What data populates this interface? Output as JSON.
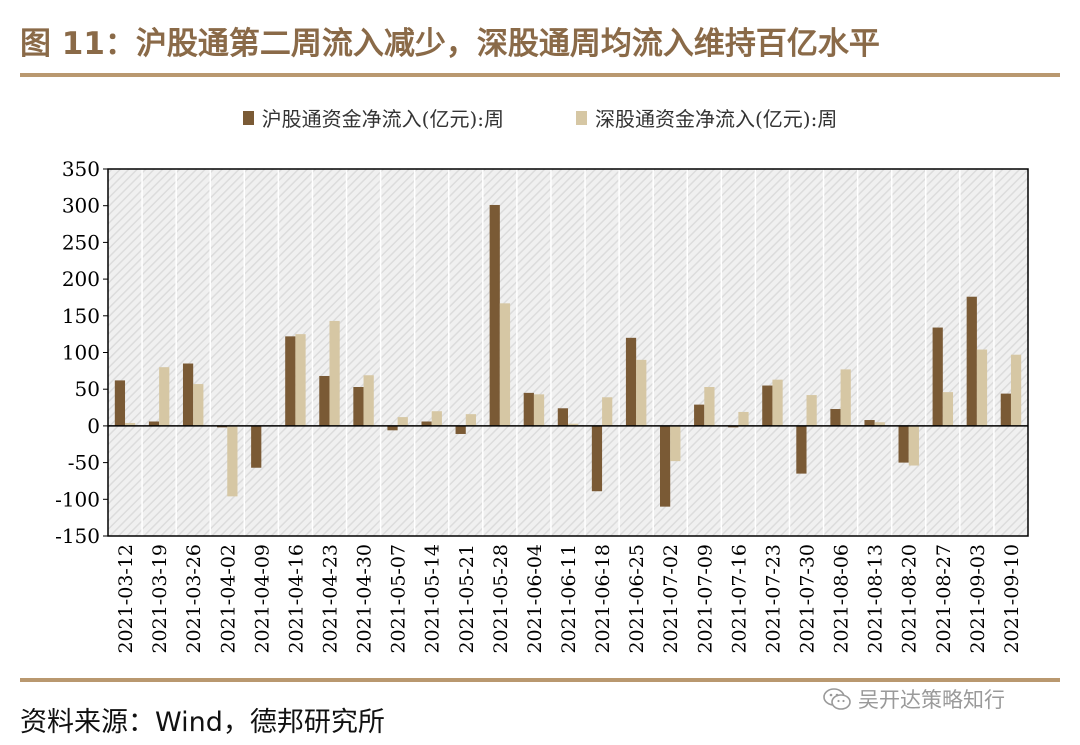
{
  "page": {
    "title": "图 11：沪股通第二周流入减少，深股通周均流入维持百亿水平",
    "source": "资料来源：Wind，德邦研究所",
    "watermark": "吴开达策略知行",
    "watermark_icon": "wechat-icon"
  },
  "colors": {
    "title": "#8a6a48",
    "rule": "#b9986f",
    "series_sh": "#7a5a35",
    "series_sz": "#d6c7a4",
    "plot_bg": "#eaeaea"
  },
  "chart_data": {
    "type": "bar",
    "categories": [
      "2021-03-12",
      "2021-03-19",
      "2021-03-26",
      "2021-04-02",
      "2021-04-09",
      "2021-04-16",
      "2021-04-23",
      "2021-04-30",
      "2021-05-07",
      "2021-05-14",
      "2021-05-21",
      "2021-05-28",
      "2021-06-04",
      "2021-06-11",
      "2021-06-18",
      "2021-06-25",
      "2021-07-02",
      "2021-07-09",
      "2021-07-16",
      "2021-07-23",
      "2021-07-30",
      "2021-08-06",
      "2021-08-13",
      "2021-08-20",
      "2021-08-27",
      "2021-09-03",
      "2021-09-10"
    ],
    "series": [
      {
        "name": "沪股通资金净流入(亿元):周",
        "values": [
          62,
          6,
          85,
          -2,
          -57,
          122,
          68,
          53,
          -6,
          6,
          -11,
          301,
          45,
          24,
          -89,
          120,
          -110,
          29,
          -2,
          55,
          -65,
          23,
          8,
          -50,
          134,
          176,
          44
        ]
      },
      {
        "name": "深股通资金净流入(亿元):周",
        "values": [
          4,
          80,
          57,
          -96,
          0,
          125,
          143,
          69,
          12,
          20,
          16,
          167,
          43,
          3,
          39,
          90,
          -48,
          53,
          19,
          63,
          42,
          77,
          5,
          -54,
          46,
          104,
          97
        ]
      }
    ],
    "ylim": [
      -150,
      350
    ],
    "yticks": [
      -150,
      -100,
      -50,
      0,
      50,
      100,
      150,
      200,
      250,
      300,
      350
    ],
    "xlabel": "",
    "ylabel": "",
    "grid": false,
    "legend": "top-center"
  }
}
